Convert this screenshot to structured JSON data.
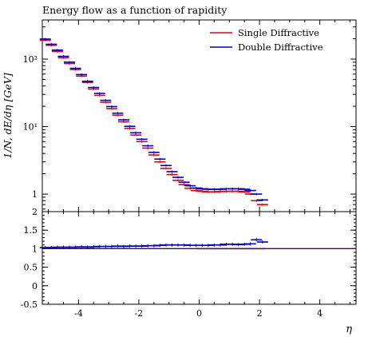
{
  "chart_data": {
    "type": "scatter",
    "title": "Energy flow as a function of rapidity",
    "ylabel": "1/N, dE/dη [GeV]",
    "xlabel": "η",
    "xlim": [
      -5.2,
      5.2
    ],
    "main_yscale": "log",
    "main_ylim": [
      0.55,
      380
    ],
    "main_yticks": [
      {
        "v": 1,
        "label": "1"
      },
      {
        "v": 10,
        "label": "10¹"
      },
      {
        "v": 100,
        "label": "10²"
      }
    ],
    "ratio_ylim": [
      -0.5,
      2
    ],
    "ratio_yticks": [
      "-0.5",
      "0",
      "0.5",
      "1",
      "1.5",
      "2"
    ],
    "xticks": [
      "-4",
      "-2",
      "0",
      "2",
      "4"
    ],
    "legend_position": "top-right",
    "grid": false,
    "series": [
      {
        "name": "Single Diffractive",
        "color": "#ee0000",
        "x": [
          -5.1,
          -4.9,
          -4.7,
          -4.5,
          -4.3,
          -4.1,
          -3.9,
          -3.7,
          -3.5,
          -3.3,
          -3.1,
          -2.9,
          -2.7,
          -2.5,
          -2.3,
          -2.1,
          -1.9,
          -1.7,
          -1.5,
          -1.3,
          -1.1,
          -0.9,
          -0.7,
          -0.5,
          -0.3,
          -0.1,
          0.1,
          0.3,
          0.5,
          0.7,
          0.9,
          1.1,
          1.3,
          1.5,
          1.7,
          1.9,
          2.1
        ],
        "y": [
          190,
          160,
          130,
          105,
          86,
          70,
          56,
          45,
          36,
          29,
          23,
          18.5,
          14.8,
          11.8,
          9.4,
          7.5,
          6.0,
          4.8,
          3.8,
          3.0,
          2.4,
          1.95,
          1.6,
          1.38,
          1.22,
          1.13,
          1.1,
          1.08,
          1.08,
          1.09,
          1.1,
          1.1,
          1.1,
          1.08,
          1.0,
          0.8,
          0.7
        ]
      },
      {
        "name": "Double Diffractive",
        "color": "#0000cc",
        "x": [
          -5.1,
          -4.9,
          -4.7,
          -4.5,
          -4.3,
          -4.1,
          -3.9,
          -3.7,
          -3.5,
          -3.3,
          -3.1,
          -2.9,
          -2.7,
          -2.5,
          -2.3,
          -2.1,
          -1.9,
          -1.7,
          -1.5,
          -1.3,
          -1.1,
          -0.9,
          -0.7,
          -0.5,
          -0.3,
          -0.1,
          0.1,
          0.3,
          0.5,
          0.7,
          0.9,
          1.1,
          1.3,
          1.5,
          1.7,
          1.9,
          2.1
        ],
        "y": [
          198,
          166,
          136,
          110,
          90,
          73,
          59,
          47,
          38,
          31,
          24.5,
          19.8,
          15.8,
          12.6,
          10.1,
          8.1,
          6.5,
          5.2,
          4.15,
          3.3,
          2.65,
          2.15,
          1.77,
          1.5,
          1.33,
          1.23,
          1.2,
          1.18,
          1.18,
          1.18,
          1.2,
          1.2,
          1.2,
          1.18,
          1.13,
          1.0,
          0.82
        ]
      }
    ],
    "ratio_series": [
      {
        "name": "Double Diffractive",
        "color": "#0000cc",
        "x": [
          -5.1,
          -4.9,
          -4.7,
          -4.5,
          -4.3,
          -4.1,
          -3.9,
          -3.7,
          -3.5,
          -3.3,
          -3.1,
          -2.9,
          -2.7,
          -2.5,
          -2.3,
          -2.1,
          -1.9,
          -1.7,
          -1.5,
          -1.3,
          -1.1,
          -0.9,
          -0.7,
          -0.5,
          -0.3,
          -0.1,
          0.1,
          0.3,
          0.5,
          0.7,
          0.9,
          1.1,
          1.3,
          1.5,
          1.7,
          1.9,
          2.1
        ],
        "y": [
          1.03,
          1.03,
          1.04,
          1.04,
          1.04,
          1.04,
          1.05,
          1.04,
          1.05,
          1.06,
          1.06,
          1.06,
          1.07,
          1.06,
          1.07,
          1.07,
          1.07,
          1.08,
          1.08,
          1.09,
          1.1,
          1.1,
          1.1,
          1.1,
          1.09,
          1.09,
          1.09,
          1.09,
          1.1,
          1.1,
          1.12,
          1.12,
          1.11,
          1.12,
          1.13,
          1.24,
          1.18
        ]
      }
    ]
  }
}
